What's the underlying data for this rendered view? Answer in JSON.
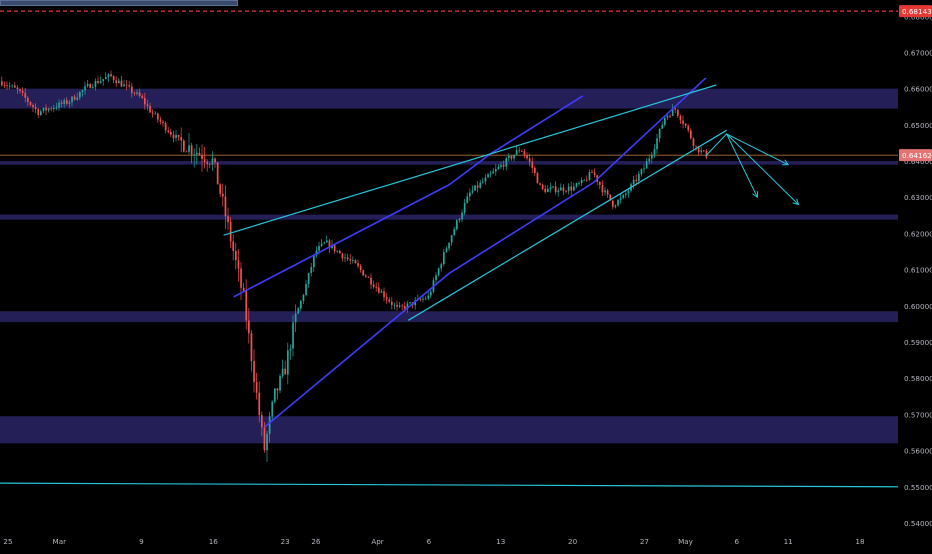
{
  "chart_data": {
    "type": "candlestick",
    "title": "",
    "xlabel": "",
    "ylabel": "",
    "x_tick_labels": [
      {
        "date": "2020-02-25",
        "label": "25"
      },
      {
        "date": "2020-03-01",
        "label": "Mar"
      },
      {
        "date": "2020-03-09",
        "label": "9"
      },
      {
        "date": "2020-03-16",
        "label": "16"
      },
      {
        "date": "2020-03-23",
        "label": "23"
      },
      {
        "date": "2020-03-26",
        "label": "26"
      },
      {
        "date": "2020-04-01",
        "label": "Apr"
      },
      {
        "date": "2020-04-06",
        "label": "6"
      },
      {
        "date": "2020-04-13",
        "label": "13"
      },
      {
        "date": "2020-04-20",
        "label": "20"
      },
      {
        "date": "2020-04-27",
        "label": "27"
      },
      {
        "date": "2020-05-01",
        "label": "May"
      },
      {
        "date": "2020-05-06",
        "label": "6"
      },
      {
        "date": "2020-05-11",
        "label": "11"
      },
      {
        "date": "2020-05-18",
        "label": "18"
      }
    ],
    "y_tick_labels": [
      "0.68000",
      "0.67000",
      "0.66000",
      "0.65000",
      "0.64000",
      "0.63000",
      "0.62000",
      "0.61000",
      "0.60000",
      "0.59000",
      "0.58000",
      "0.57000",
      "0.56000",
      "0.55000",
      "0.54000"
    ],
    "ylim": [
      0.5375,
      0.6845
    ],
    "last_price": {
      "label": "0.64162",
      "value": 0.64162,
      "color": "#e57373"
    },
    "alert_level": {
      "label": "0.68143",
      "value": 0.68143,
      "color": "#e53935"
    },
    "price_path": [
      [
        "2020-02-24",
        0.6625
      ],
      [
        "2020-02-26",
        0.6595
      ],
      [
        "2020-02-28",
        0.6535
      ],
      [
        "2020-03-02",
        0.6565
      ],
      [
        "2020-03-04",
        0.661
      ],
      [
        "2020-03-06",
        0.6635
      ],
      [
        "2020-03-09",
        0.6575
      ],
      [
        "2020-03-10",
        0.6535
      ],
      [
        "2020-03-12",
        0.6475
      ],
      [
        "2020-03-13",
        0.645
      ],
      [
        "2020-03-16",
        0.64
      ],
      [
        "2020-03-17",
        0.628
      ],
      [
        "2020-03-18",
        0.615
      ],
      [
        "2020-03-19",
        0.602
      ],
      [
        "2020-03-20",
        0.581
      ],
      [
        "2020-03-21",
        0.56
      ],
      [
        "2020-03-22",
        0.575
      ],
      [
        "2020-03-23",
        0.582
      ],
      [
        "2020-03-24",
        0.596
      ],
      [
        "2020-03-25",
        0.605
      ],
      [
        "2020-03-26",
        0.615
      ],
      [
        "2020-03-27",
        0.6175
      ],
      [
        "2020-03-30",
        0.611
      ],
      [
        "2020-04-01",
        0.605
      ],
      [
        "2020-04-03",
        0.599
      ],
      [
        "2020-04-06",
        0.6025
      ],
      [
        "2020-04-08",
        0.618
      ],
      [
        "2020-04-10",
        0.631
      ],
      [
        "2020-04-13",
        0.6385
      ],
      [
        "2020-04-15",
        0.6435
      ],
      [
        "2020-04-16",
        0.639
      ],
      [
        "2020-04-17",
        0.632
      ],
      [
        "2020-04-20",
        0.6325
      ],
      [
        "2020-04-21",
        0.634
      ],
      [
        "2020-04-22",
        0.637
      ],
      [
        "2020-04-23",
        0.632
      ],
      [
        "2020-04-24",
        0.628
      ],
      [
        "2020-04-25",
        0.63
      ],
      [
        "2020-04-27",
        0.638
      ],
      [
        "2020-04-28",
        0.644
      ],
      [
        "2020-04-29",
        0.652
      ],
      [
        "2020-04-30",
        0.6545
      ],
      [
        "2020-05-01",
        0.65
      ],
      [
        "2020-05-02",
        0.644
      ],
      [
        "2020-05-03",
        0.6416
      ]
    ],
    "zones": [
      {
        "from": 0.6545,
        "to": 0.66
      },
      {
        "from": 0.639,
        "to": 0.64
      },
      {
        "from": 0.6238,
        "to": 0.6252
      },
      {
        "from": 0.5955,
        "to": 0.5985
      },
      {
        "from": 0.562,
        "to": 0.5695
      }
    ],
    "trendlines": [
      {
        "color": "#3d3dff",
        "points": [
          [
            "2020-03-18",
            0.6025
          ],
          [
            "2020-04-08",
            0.6335
          ],
          [
            "2020-04-12",
            0.642
          ],
          [
            "2020-04-21",
            0.658
          ]
        ]
      },
      {
        "color": "#3d3dff",
        "points": [
          [
            "2020-03-21",
            0.5665
          ],
          [
            "2020-04-08",
            0.609
          ],
          [
            "2020-04-22",
            0.634
          ],
          [
            "2020-05-03",
            0.663
          ]
        ]
      },
      {
        "color": "#26c6da",
        "points": [
          [
            "2020-03-17",
            0.6195
          ],
          [
            "2020-05-04",
            0.661
          ]
        ]
      },
      {
        "color": "#26c6da",
        "points": [
          [
            "2020-04-04",
            0.596
          ],
          [
            "2020-05-05",
            0.6485
          ]
        ]
      },
      {
        "color": "#26c6da",
        "points": [
          [
            "2020-02-23",
            0.551
          ],
          [
            "2020-05-22",
            0.55
          ]
        ]
      }
    ],
    "projection_arrows": [
      {
        "color": "#26c6da",
        "points": [
          [
            "2020-05-03",
            0.6415
          ],
          [
            "2020-05-05",
            0.6475
          ],
          [
            "2020-05-08",
            0.63
          ]
        ]
      },
      {
        "color": "#26c6da",
        "points": [
          [
            "2020-05-05",
            0.6475
          ],
          [
            "2020-05-11",
            0.639
          ]
        ]
      },
      {
        "color": "#26c6da",
        "points": [
          [
            "2020-05-05",
            0.6475
          ],
          [
            "2020-05-12",
            0.628
          ]
        ]
      }
    ]
  }
}
